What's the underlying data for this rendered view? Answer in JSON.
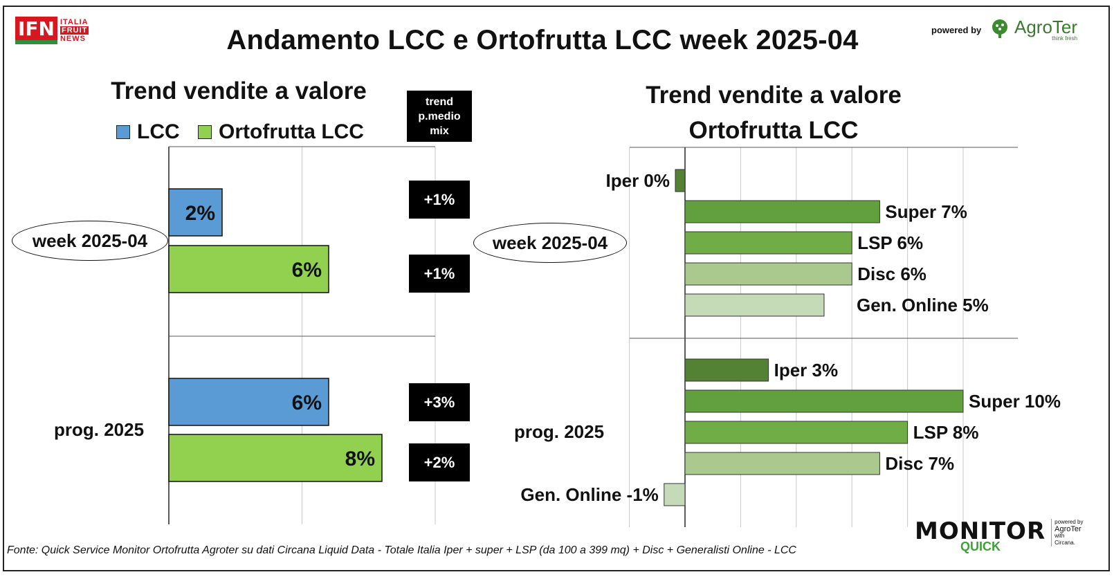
{
  "header": {
    "title": "Andamento LCC e Ortofrutta LCC week 2025-04",
    "ifn_logo": "IFN",
    "ifn_logo_sub": [
      "ITALIA",
      "FRUIT",
      "NEWS"
    ],
    "powered_by": "powered by",
    "agroter_logo": "AgroTer",
    "agroter_tagline": "think fresh"
  },
  "footer": {
    "source": "Fonte: Quick Service Monitor Ortofrutta Agroter su dati Circana Liquid Data - Totale Italia Iper + super + LSP (da 100 a 399 mq) + Disc + Generalisti Online - LCC",
    "monitor_logo": "MONITOR",
    "monitor_sub": "QUICK",
    "monitor_powered": [
      "powered by",
      "AgroTer",
      "with",
      "Circana."
    ]
  },
  "left_panel": {
    "subtitle": "Trend vendite a valore",
    "legend": [
      {
        "label": "LCC",
        "color": "#5b9bd5"
      },
      {
        "label": "Ortofrutta LCC",
        "color": "#92d050"
      }
    ],
    "price_header": "trend p.medio mix",
    "week_label": "week 2025-04",
    "prog_label": "prog. 2025",
    "price_trend": {
      "week": [
        "+1%",
        "+1%"
      ],
      "prog": [
        "+3%",
        "+2%"
      ]
    }
  },
  "right_panel": {
    "subtitle_line1": "Trend vendite a valore",
    "subtitle_line2": "Ortofrutta LCC",
    "week_label": "week 2025-04",
    "prog_label": "prog. 2025"
  },
  "chart_data": [
    {
      "type": "bar",
      "orientation": "horizontal",
      "title": "Trend vendite a valore",
      "categories": [
        "week 2025-04",
        "prog. 2025"
      ],
      "series": [
        {
          "name": "LCC",
          "values": [
            2,
            6
          ],
          "labels": [
            "2%",
            "6%"
          ],
          "color": "#5b9bd5"
        },
        {
          "name": "Ortofrutta LCC",
          "values": [
            6,
            8
          ],
          "labels": [
            "6%",
            "8%"
          ],
          "color": "#92d050"
        }
      ],
      "xlim": [
        0,
        10
      ],
      "grid": true,
      "legend": "top"
    },
    {
      "type": "bar",
      "orientation": "horizontal",
      "title": "Trend vendite a valore Ortofrutta LCC",
      "categories": [
        "week 2025-04",
        "prog. 2025"
      ],
      "xlim": [
        -2,
        10
      ],
      "grid": true,
      "groups": [
        {
          "category": "week 2025-04",
          "bars": [
            {
              "label": "Iper 0%",
              "value": 0,
              "color": "#548235"
            },
            {
              "label": "Super 7%",
              "value": 7,
              "color": "#62a03d"
            },
            {
              "label": "LSP 6%",
              "value": 6,
              "color": "#70ad47"
            },
            {
              "label": "Disc 6%",
              "value": 6,
              "color": "#a9c98e"
            },
            {
              "label": "Gen. Online 5%",
              "value": 5,
              "color": "#c5dab6"
            }
          ]
        },
        {
          "category": "prog. 2025",
          "bars": [
            {
              "label": "Iper 3%",
              "value": 3,
              "color": "#548235"
            },
            {
              "label": "Super 10%",
              "value": 10,
              "color": "#62a03d"
            },
            {
              "label": "LSP 8%",
              "value": 8,
              "color": "#70ad47"
            },
            {
              "label": "Disc 7%",
              "value": 7,
              "color": "#a9c98e"
            },
            {
              "label": "Gen. Online -1%",
              "value": -1,
              "color": "#c5dab6"
            }
          ]
        }
      ]
    }
  ]
}
